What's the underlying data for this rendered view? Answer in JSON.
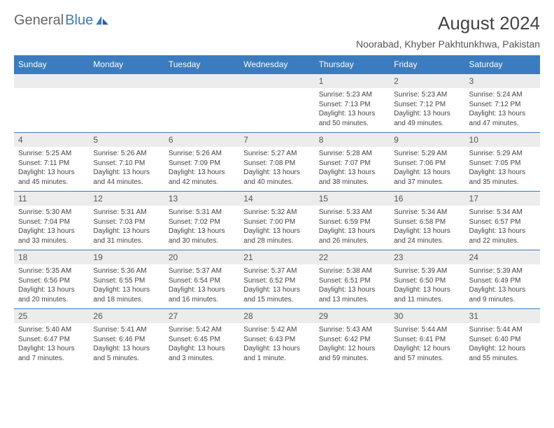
{
  "logo": {
    "text1": "General",
    "text2": "Blue"
  },
  "title": "August 2024",
  "subtitle": "Noorabad, Khyber Pakhtunkhwa, Pakistan",
  "dayNames": [
    "Sunday",
    "Monday",
    "Tuesday",
    "Wednesday",
    "Thursday",
    "Friday",
    "Saturday"
  ],
  "colors": {
    "headerBg": "#3b7bbf",
    "dateBg": "#ececec",
    "pageBg": "#ffffff"
  },
  "weeks": [
    [
      null,
      null,
      null,
      null,
      {
        "d": "1",
        "sr": "5:23 AM",
        "ss": "7:13 PM",
        "dl": "13 hours and 50 minutes."
      },
      {
        "d": "2",
        "sr": "5:23 AM",
        "ss": "7:12 PM",
        "dl": "13 hours and 49 minutes."
      },
      {
        "d": "3",
        "sr": "5:24 AM",
        "ss": "7:12 PM",
        "dl": "13 hours and 47 minutes."
      }
    ],
    [
      {
        "d": "4",
        "sr": "5:25 AM",
        "ss": "7:11 PM",
        "dl": "13 hours and 45 minutes."
      },
      {
        "d": "5",
        "sr": "5:26 AM",
        "ss": "7:10 PM",
        "dl": "13 hours and 44 minutes."
      },
      {
        "d": "6",
        "sr": "5:26 AM",
        "ss": "7:09 PM",
        "dl": "13 hours and 42 minutes."
      },
      {
        "d": "7",
        "sr": "5:27 AM",
        "ss": "7:08 PM",
        "dl": "13 hours and 40 minutes."
      },
      {
        "d": "8",
        "sr": "5:28 AM",
        "ss": "7:07 PM",
        "dl": "13 hours and 38 minutes."
      },
      {
        "d": "9",
        "sr": "5:29 AM",
        "ss": "7:06 PM",
        "dl": "13 hours and 37 minutes."
      },
      {
        "d": "10",
        "sr": "5:29 AM",
        "ss": "7:05 PM",
        "dl": "13 hours and 35 minutes."
      }
    ],
    [
      {
        "d": "11",
        "sr": "5:30 AM",
        "ss": "7:04 PM",
        "dl": "13 hours and 33 minutes."
      },
      {
        "d": "12",
        "sr": "5:31 AM",
        "ss": "7:03 PM",
        "dl": "13 hours and 31 minutes."
      },
      {
        "d": "13",
        "sr": "5:31 AM",
        "ss": "7:02 PM",
        "dl": "13 hours and 30 minutes."
      },
      {
        "d": "14",
        "sr": "5:32 AM",
        "ss": "7:00 PM",
        "dl": "13 hours and 28 minutes."
      },
      {
        "d": "15",
        "sr": "5:33 AM",
        "ss": "6:59 PM",
        "dl": "13 hours and 26 minutes."
      },
      {
        "d": "16",
        "sr": "5:34 AM",
        "ss": "6:58 PM",
        "dl": "13 hours and 24 minutes."
      },
      {
        "d": "17",
        "sr": "5:34 AM",
        "ss": "6:57 PM",
        "dl": "13 hours and 22 minutes."
      }
    ],
    [
      {
        "d": "18",
        "sr": "5:35 AM",
        "ss": "6:56 PM",
        "dl": "13 hours and 20 minutes."
      },
      {
        "d": "19",
        "sr": "5:36 AM",
        "ss": "6:55 PM",
        "dl": "13 hours and 18 minutes."
      },
      {
        "d": "20",
        "sr": "5:37 AM",
        "ss": "6:54 PM",
        "dl": "13 hours and 16 minutes."
      },
      {
        "d": "21",
        "sr": "5:37 AM",
        "ss": "6:52 PM",
        "dl": "13 hours and 15 minutes."
      },
      {
        "d": "22",
        "sr": "5:38 AM",
        "ss": "6:51 PM",
        "dl": "13 hours and 13 minutes."
      },
      {
        "d": "23",
        "sr": "5:39 AM",
        "ss": "6:50 PM",
        "dl": "13 hours and 11 minutes."
      },
      {
        "d": "24",
        "sr": "5:39 AM",
        "ss": "6:49 PM",
        "dl": "13 hours and 9 minutes."
      }
    ],
    [
      {
        "d": "25",
        "sr": "5:40 AM",
        "ss": "6:47 PM",
        "dl": "13 hours and 7 minutes."
      },
      {
        "d": "26",
        "sr": "5:41 AM",
        "ss": "6:46 PM",
        "dl": "13 hours and 5 minutes."
      },
      {
        "d": "27",
        "sr": "5:42 AM",
        "ss": "6:45 PM",
        "dl": "13 hours and 3 minutes."
      },
      {
        "d": "28",
        "sr": "5:42 AM",
        "ss": "6:43 PM",
        "dl": "13 hours and 1 minute."
      },
      {
        "d": "29",
        "sr": "5:43 AM",
        "ss": "6:42 PM",
        "dl": "12 hours and 59 minutes."
      },
      {
        "d": "30",
        "sr": "5:44 AM",
        "ss": "6:41 PM",
        "dl": "12 hours and 57 minutes."
      },
      {
        "d": "31",
        "sr": "5:44 AM",
        "ss": "6:40 PM",
        "dl": "12 hours and 55 minutes."
      }
    ]
  ]
}
